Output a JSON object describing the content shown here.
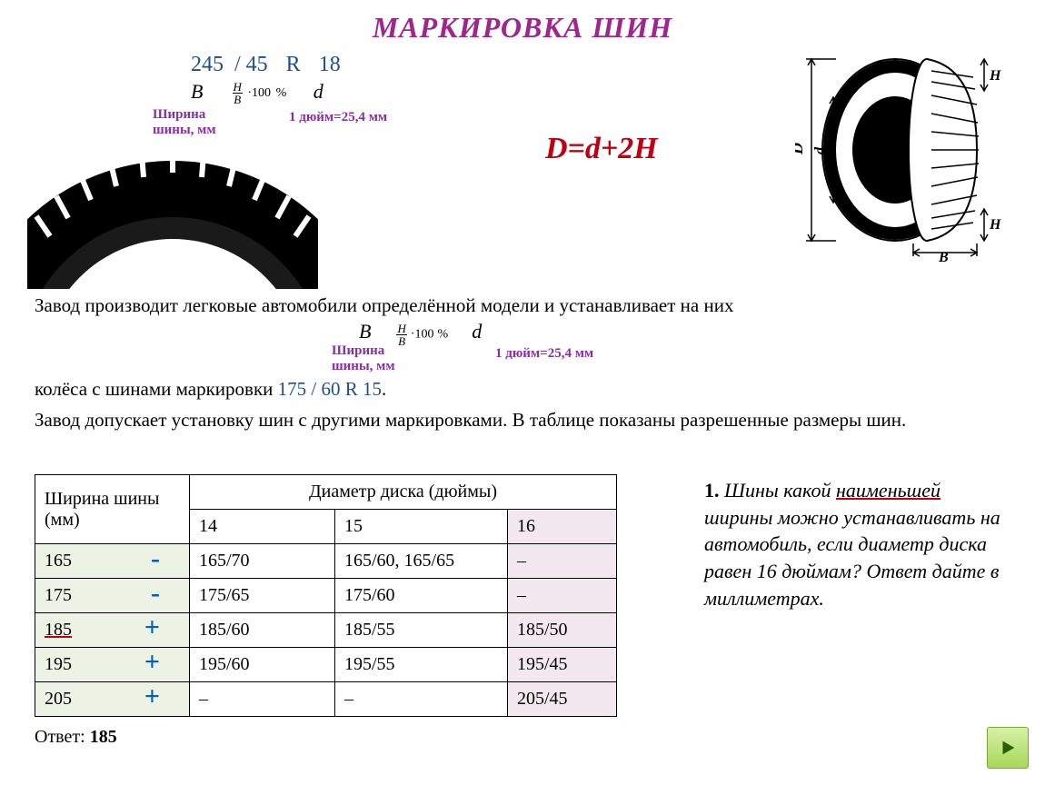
{
  "title": "МАРКИРОВКА ШИН",
  "marking": {
    "v1": "245",
    "v2": "/ 45",
    "v3": "R",
    "v4": "18"
  },
  "sub": {
    "B": "B",
    "d": "d",
    "frac_num": "H",
    "frac_den": "B",
    "mult": "·100",
    "pct": "%"
  },
  "annot": {
    "width": "Ширина\nшины, мм",
    "inch": "1 дюйм=25,4 мм"
  },
  "formula": "D=d+2H",
  "tire_label": "245/45R18",
  "diagram": {
    "D": "D",
    "d": "d",
    "H": "H",
    "B": "B"
  },
  "para1": "Завод производит легковые автомобили определённой модели и устанавливает на них",
  "para2_a": "колёса с шинами  маркировки  ",
  "para2_mark": "175  / 60  R  15",
  "para2_dot": ".",
  "para3": "Завод допускает установку шин с другими маркировками. В таблице показаны разрешенные размеры шин.",
  "table": {
    "col0_header": "Ширина шины (мм)",
    "col_span_header": "Диаметр диска (дюймы)",
    "cols": [
      "14",
      "15",
      "16"
    ],
    "rows": [
      {
        "w": "165",
        "mark": "-",
        "mark_color": "#005ec4",
        "cells": [
          "165/70",
          "165/60, 165/65",
          "–"
        ]
      },
      {
        "w": "175",
        "mark": "-",
        "mark_color": "#005ec4",
        "cells": [
          "175/65",
          "175/60",
          "–"
        ]
      },
      {
        "w": "185",
        "mark": "+",
        "mark_color": "#005ec4",
        "underline": true,
        "cells": [
          "185/60",
          "185/55",
          "185/50"
        ]
      },
      {
        "w": "195",
        "mark": "+",
        "mark_color": "#005ec4",
        "cells": [
          "195/60",
          "195/55",
          "195/45"
        ]
      },
      {
        "w": "205",
        "mark": "+",
        "mark_color": "#005ec4",
        "cells": [
          "–",
          "–",
          "205/45"
        ]
      }
    ]
  },
  "question": {
    "num": "1.",
    "text_a": "Шины какой ",
    "und": "наименьшей",
    "text_b": " ширины можно устанавливать на автомобиль, если диаметр диска равен 16 дюймам? Ответ дайте в миллиметрах."
  },
  "answer_label": "Ответ: ",
  "answer_value": "185",
  "nav_icon": "next",
  "colors": {
    "title": "#a0268c",
    "blue": "#1f4e8c",
    "purple": "#8a2ea8",
    "red": "#c00010",
    "green_bg": "#edf3e4",
    "pink_bg": "#f4e8f0"
  },
  "fonts": {
    "title_size": 32,
    "body_size": 21,
    "question_size": 22
  }
}
